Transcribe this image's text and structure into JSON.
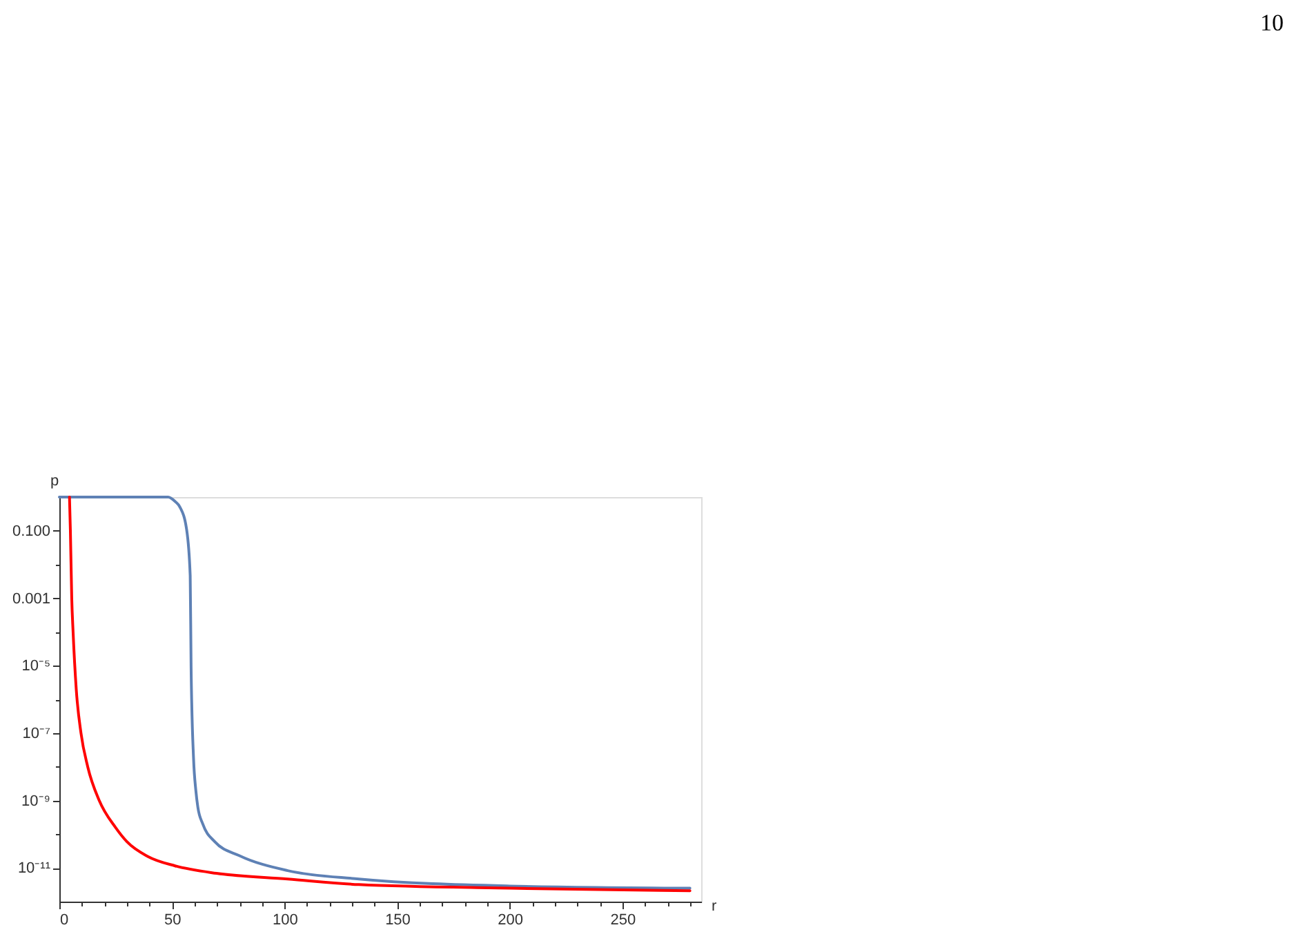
{
  "chart_data": {
    "type": "line",
    "xlabel": "r",
    "ylabel": "p",
    "annotations": [
      "10"
    ],
    "log": "y",
    "grid": false,
    "line_style": "solid",
    "xlim": [
      0,
      285
    ],
    "ylim": [
      1e-12,
      1
    ],
    "xticks": [
      0,
      {
        "value": 10,
        "label": null
      },
      {
        "value": 20,
        "label": null
      },
      {
        "value": 30,
        "label": null
      },
      {
        "value": 40,
        "label": null
      },
      50,
      {
        "value": 60,
        "label": null
      },
      {
        "value": 70,
        "label": null
      },
      {
        "value": 80,
        "label": null
      },
      {
        "value": 90,
        "label": null
      },
      100,
      {
        "value": 110,
        "label": null
      },
      {
        "value": 120,
        "label": null
      },
      {
        "value": 130,
        "label": null
      },
      {
        "value": 140,
        "label": null
      },
      150,
      {
        "value": 160,
        "label": null
      },
      {
        "value": 170,
        "label": null
      },
      {
        "value": 180,
        "label": null
      },
      {
        "value": 190,
        "label": null
      },
      200,
      {
        "value": 210,
        "label": null
      },
      {
        "value": 220,
        "label": null
      },
      {
        "value": 230,
        "label": null
      },
      {
        "value": 240,
        "label": null
      },
      250,
      {
        "value": 260,
        "label": null
      },
      {
        "value": 270,
        "label": null
      },
      {
        "value": 280,
        "label": null
      }
    ],
    "yticks": [
      {
        "value": 0.1,
        "label": "0.100"
      },
      {
        "value": 0.01,
        "label": null
      },
      0.001,
      {
        "value": 0.0001,
        "label": null
      },
      {
        "value": 1e-05,
        "label": "10⁻⁵"
      },
      {
        "value": 1e-06,
        "label": null
      },
      {
        "value": 1e-07,
        "label": "10⁻⁷"
      },
      {
        "value": 1e-08,
        "label": null
      },
      {
        "value": 1e-09,
        "label": "10⁻⁹"
      },
      {
        "value": 1e-10,
        "label": null
      },
      {
        "value": 1e-11,
        "label": "10⁻¹¹"
      }
    ],
    "series": [
      {
        "color": "#5e81b5",
        "x": [
          0,
          48.3,
          51.4,
          53.5,
          56.5,
          58.1,
          58.5,
          59.6,
          60.6,
          61.5,
          63.7,
          69,
          80,
          101.4,
          133,
          200,
          280
        ],
        "values": [
          1,
          1,
          0.74,
          0.51,
          0.11,
          0.0047,
          9e-06,
          1.7e-08,
          2e-09,
          6.3e-10,
          2e-10,
          6e-11,
          2.3e-11,
          8.3e-12,
          4.7e-12,
          2.9e-12,
          2.5e-12
        ]
      },
      {
        "color": "#ff0000",
        "x": [
          4.5,
          4.9,
          5.5,
          6.1,
          7.5,
          9.6,
          12.6,
          17.7,
          24.9,
          30,
          39.2,
          51.4,
          69.8,
          101.4,
          133,
          200,
          280
        ],
        "values": [
          1,
          0.1,
          0.001,
          0.0001,
          2e-06,
          1e-07,
          1e-08,
          1e-09,
          1.6e-10,
          6e-11,
          2.2e-11,
          1.15e-11,
          6.9e-12,
          4.7e-12,
          3.2e-12,
          2.5e-12,
          2.1e-12
        ]
      }
    ]
  }
}
